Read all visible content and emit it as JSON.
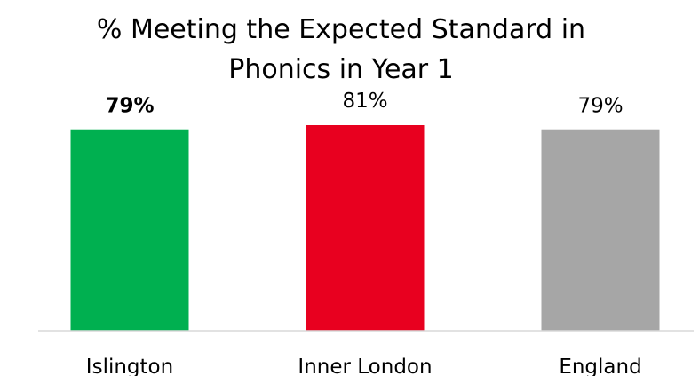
{
  "chart_data": {
    "type": "bar",
    "title_lines": [
      "% Meeting the Expected Standard in",
      "Phonics in Year 1"
    ],
    "categories": [
      "Islington",
      "Inner London",
      "England"
    ],
    "values": [
      79,
      81,
      79
    ],
    "data_labels": [
      "79%",
      "81%",
      "79%"
    ],
    "bold_labels": [
      true,
      false,
      false
    ],
    "colors": [
      "#00b050",
      "#e8001f",
      "#a6a6a6"
    ],
    "xlabel": "",
    "ylabel": "",
    "ylim": [
      0,
      81
    ],
    "grid": false,
    "legend": "none"
  }
}
